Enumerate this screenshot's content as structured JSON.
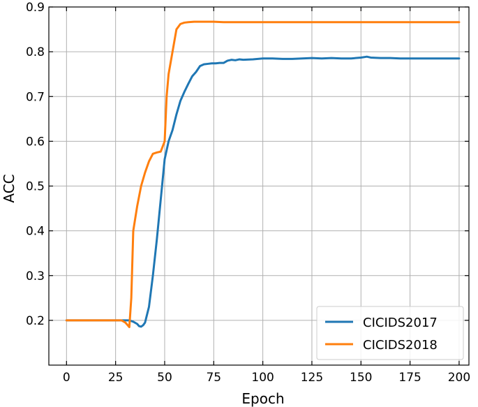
{
  "chart_data": {
    "type": "line",
    "xlabel": "Epoch",
    "ylabel": "ACC",
    "xlim": [
      -9,
      205
    ],
    "ylim": [
      0.1,
      0.9
    ],
    "xticks": [
      0,
      25,
      50,
      75,
      100,
      125,
      150,
      175,
      200
    ],
    "yticks": [
      0.2,
      0.3,
      0.4,
      0.5,
      0.6,
      0.7,
      0.8,
      0.9
    ],
    "xtick_labels": [
      "0",
      "25",
      "50",
      "75",
      "100",
      "125",
      "150",
      "175",
      "200"
    ],
    "ytick_labels": [
      "0.2",
      "0.3",
      "0.4",
      "0.5",
      "0.6",
      "0.7",
      "0.8",
      "0.9"
    ],
    "grid": true,
    "legend_position": "bottom-right",
    "series": [
      {
        "name": "CICIDS2017",
        "color": "#1f77b4",
        "x": [
          0,
          5,
          10,
          15,
          20,
          25,
          28,
          30,
          32,
          34,
          36,
          37,
          38,
          39,
          40,
          42,
          44,
          46,
          48,
          50,
          52,
          54,
          56,
          58,
          60,
          62,
          64,
          66,
          68,
          70,
          72,
          74,
          76,
          78,
          80,
          82,
          84,
          86,
          88,
          90,
          95,
          100,
          105,
          110,
          115,
          120,
          125,
          130,
          135,
          140,
          145,
          150,
          153,
          155,
          160,
          165,
          170,
          175,
          180,
          185,
          190,
          195,
          200
        ],
        "y": [
          0.2,
          0.2,
          0.2,
          0.2,
          0.2,
          0.2,
          0.2,
          0.2,
          0.2,
          0.197,
          0.192,
          0.187,
          0.186,
          0.189,
          0.195,
          0.23,
          0.3,
          0.38,
          0.47,
          0.56,
          0.6,
          0.625,
          0.66,
          0.69,
          0.71,
          0.728,
          0.745,
          0.755,
          0.768,
          0.772,
          0.773,
          0.774,
          0.774,
          0.775,
          0.775,
          0.78,
          0.782,
          0.781,
          0.783,
          0.782,
          0.783,
          0.785,
          0.785,
          0.784,
          0.784,
          0.785,
          0.786,
          0.785,
          0.786,
          0.785,
          0.785,
          0.787,
          0.789,
          0.787,
          0.786,
          0.786,
          0.785,
          0.785,
          0.785,
          0.785,
          0.785,
          0.785,
          0.785
        ]
      },
      {
        "name": "CICIDS2018",
        "color": "#ff7f0e",
        "x": [
          0,
          5,
          10,
          15,
          20,
          25,
          28,
          30,
          31,
          32,
          33,
          34,
          36,
          38,
          40,
          42,
          44,
          46,
          48,
          50,
          51,
          52,
          54,
          56,
          58,
          60,
          62,
          65,
          70,
          75,
          80,
          90,
          100,
          110,
          120,
          130,
          140,
          150,
          160,
          170,
          180,
          190,
          200
        ],
        "y": [
          0.2,
          0.2,
          0.2,
          0.2,
          0.2,
          0.2,
          0.2,
          0.195,
          0.19,
          0.185,
          0.25,
          0.4,
          0.455,
          0.5,
          0.53,
          0.555,
          0.572,
          0.575,
          0.577,
          0.6,
          0.7,
          0.75,
          0.8,
          0.85,
          0.862,
          0.865,
          0.866,
          0.867,
          0.867,
          0.867,
          0.866,
          0.866,
          0.866,
          0.866,
          0.866,
          0.866,
          0.866,
          0.866,
          0.866,
          0.866,
          0.866,
          0.866,
          0.866
        ]
      }
    ]
  }
}
